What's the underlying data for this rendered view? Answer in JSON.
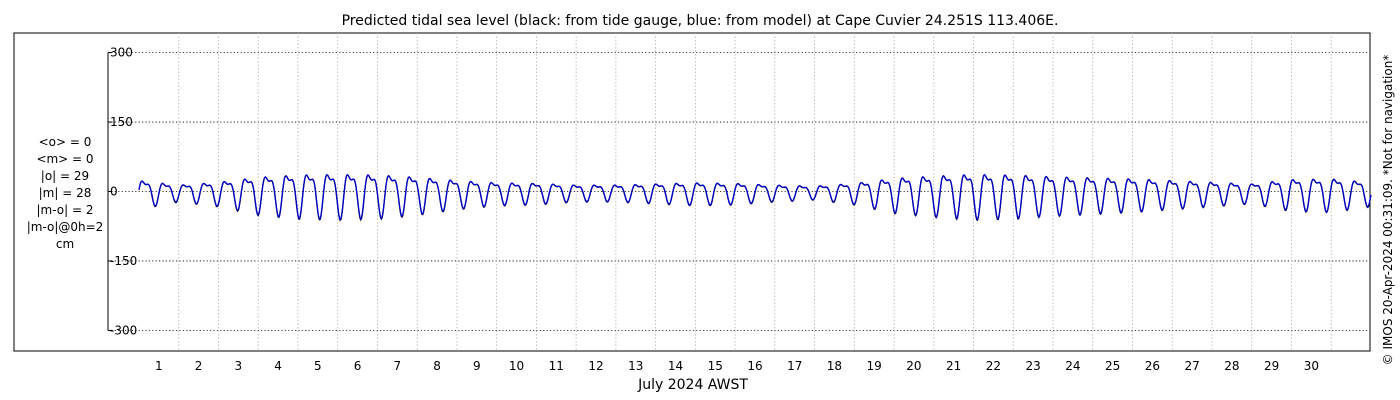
{
  "chart_data": {
    "type": "line",
    "title": "Predicted tidal sea level (black: from tide gauge, blue: from model) at Cape Cuvier 24.251S 113.406E.",
    "xlabel": "July 2024 AWST",
    "ylabel": "",
    "ylim": [
      -320,
      320
    ],
    "xlim": [
      0,
      31
    ],
    "grid": true,
    "y_ticks": [
      {
        "value": 300,
        "label": "300"
      },
      {
        "value": 150,
        "label": "150"
      },
      {
        "value": 0,
        "label": "0"
      },
      {
        "value": -150,
        "label": "-150"
      },
      {
        "value": -300,
        "label": "-300"
      }
    ],
    "x_ticks": [
      "1",
      "2",
      "3",
      "4",
      "5",
      "6",
      "7",
      "8",
      "9",
      "10",
      "11",
      "12",
      "13",
      "14",
      "15",
      "16",
      "17",
      "18",
      "19",
      "20",
      "21",
      "22",
      "23",
      "24",
      "25",
      "26",
      "27",
      "28",
      "29",
      "30"
    ],
    "series": [
      {
        "name": "tide gauge",
        "color": "#000000"
      },
      {
        "name": "model",
        "color": "#0000cc"
      }
    ],
    "series_envelope": {
      "x_day": [
        0,
        1,
        2,
        3,
        4,
        5,
        6,
        7,
        8,
        9,
        10,
        11,
        12,
        13,
        14,
        15,
        16,
        17,
        18,
        19,
        20,
        21,
        22,
        23,
        24,
        25,
        26,
        27,
        28,
        29,
        30,
        31
      ],
      "amplitude_cm": [
        38,
        22,
        32,
        50,
        58,
        60,
        58,
        50,
        38,
        30,
        28,
        22,
        22,
        26,
        30,
        28,
        22,
        18,
        28,
        46,
        54,
        60,
        58,
        52,
        48,
        44,
        38,
        32,
        26,
        42,
        44,
        32
      ]
    },
    "stats": [
      "<o> = 0",
      "<m> = 0",
      "|o| = 29",
      "|m| = 28",
      "|m-o| = 2",
      "|m-o|@0h=2",
      "cm"
    ],
    "annotation": "© IMOS 20-Apr-2024 00:31:09. *Not for navigation*"
  }
}
